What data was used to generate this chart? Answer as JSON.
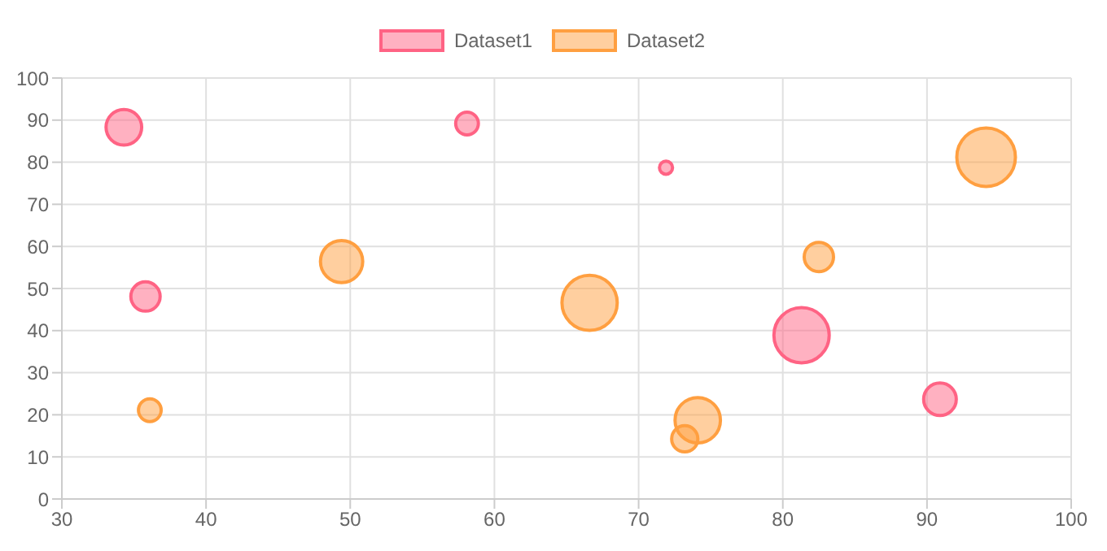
{
  "chart_data": {
    "type": "bubble",
    "xlim": [
      30,
      100
    ],
    "xticks": [
      30,
      40,
      50,
      60,
      70,
      80,
      90,
      100
    ],
    "ylim": [
      0,
      100
    ],
    "yticks": [
      0,
      10,
      20,
      30,
      40,
      50,
      60,
      70,
      80,
      90,
      100
    ],
    "grid": true,
    "legend": "top",
    "series": [
      {
        "name": "Dataset1",
        "color": "#ff6384",
        "x": [
          34.3,
          35.8,
          58.1,
          71.9,
          81.3,
          90.9
        ],
        "values": [
          88.3,
          48.1,
          89.2,
          78.7,
          38.9,
          23.7
        ],
        "sizes": [
          0.37,
          0.25,
          0.15,
          0.05,
          0.89,
          0.31
        ]
      },
      {
        "name": "Dataset2",
        "color": "#ff9f40",
        "x": [
          36.1,
          49.4,
          66.6,
          73.2,
          74.1,
          82.5,
          94.1
        ],
        "values": [
          21.1,
          56.4,
          46.6,
          14.3,
          18.7,
          57.5,
          81.2
        ],
        "sizes": [
          0.15,
          0.52,
          0.89,
          0.2,
          0.6,
          0.25,
          1
        ]
      }
    ]
  }
}
